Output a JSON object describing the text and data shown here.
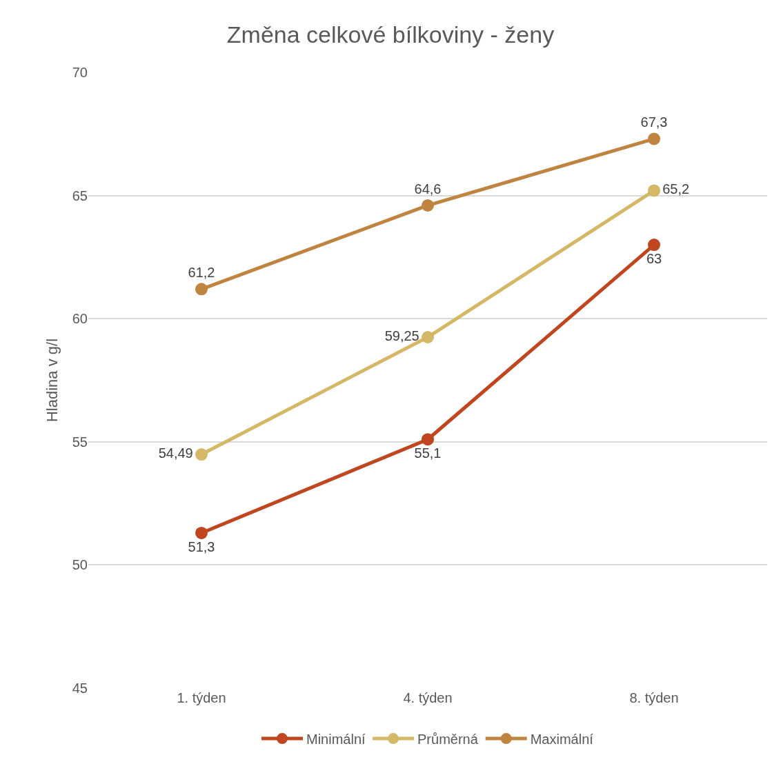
{
  "chart_data": {
    "type": "line",
    "title": "Změna celkové bílkoviny - ženy",
    "ylabel": "Hladina v g/l",
    "categories": [
      "1. týden",
      "4. týden",
      "8. týden"
    ],
    "series": [
      {
        "name": "Minimální",
        "color": "#c0461f",
        "values": [
          51.3,
          55.1,
          63
        ],
        "value_labels": [
          "51,3",
          "55,1",
          "63"
        ]
      },
      {
        "name": "Průměrná",
        "color": "#d4b866",
        "values": [
          54.49,
          59.25,
          65.2
        ],
        "value_labels": [
          "54,49",
          "59,25",
          "65,2"
        ]
      },
      {
        "name": "Maximální",
        "color": "#bf8540",
        "values": [
          61.2,
          64.6,
          67.3
        ],
        "value_labels": [
          "61,2",
          "64,6",
          "67,3"
        ]
      }
    ],
    "ylim": [
      45,
      70
    ],
    "yticks": [
      45,
      50,
      55,
      60,
      65,
      70
    ],
    "grid": "y",
    "legend": "bottom",
    "marker": "circle",
    "line_style": "solid"
  }
}
